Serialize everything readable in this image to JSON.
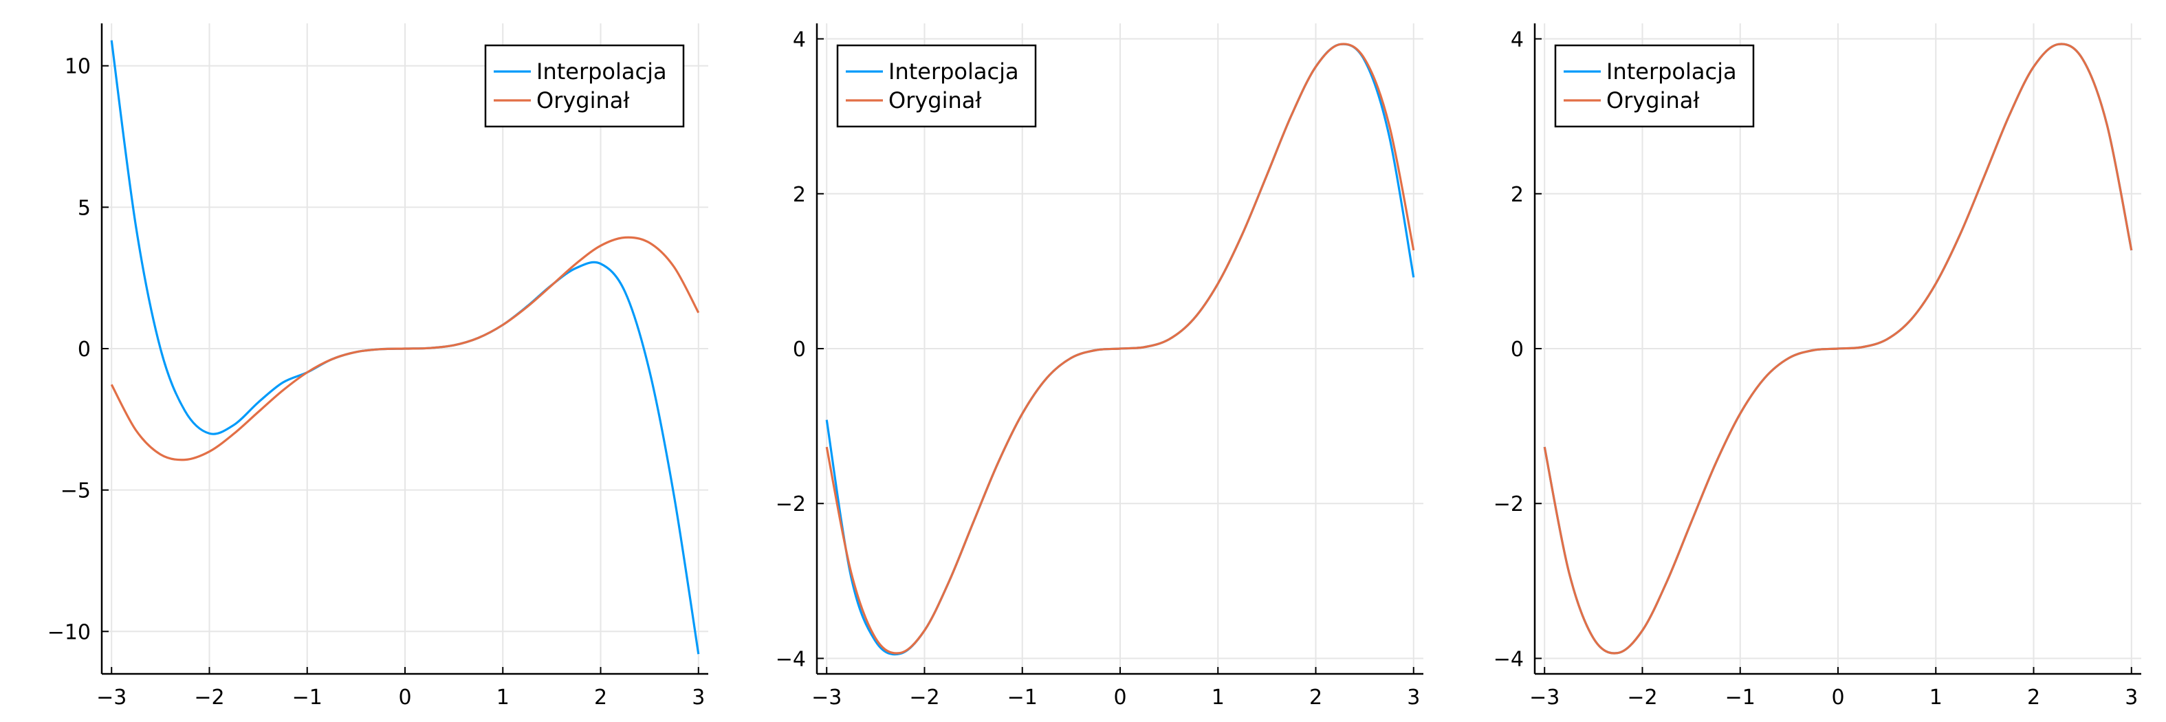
{
  "colors": {
    "interpolation": "#009AFA",
    "original": "#E26F46",
    "axis": "#000000",
    "grid": "#E6E6E6",
    "background": "#FFFFFF"
  },
  "chart_data": [
    {
      "type": "line",
      "xlim": [
        -3.1,
        3.1
      ],
      "ylim": [
        -11.5,
        11.5
      ],
      "x_ticks": [
        -3,
        -2,
        -1,
        0,
        1,
        2,
        3
      ],
      "x_tick_labels": [
        "−3",
        "−2",
        "−1",
        "0",
        "1",
        "2",
        "3"
      ],
      "y_ticks": [
        -10,
        -5,
        0,
        5,
        10
      ],
      "y_tick_labels": [
        "−10",
        "−5",
        "0",
        "5",
        "10"
      ],
      "grid": true,
      "legend_position": "top-right",
      "series": [
        {
          "name": "Interpolacja",
          "x": [
            -3,
            -2.75,
            -2.5,
            -2.25,
            -2,
            -1.75,
            -1.5,
            -1.25,
            -1,
            -0.75,
            -0.5,
            -0.25,
            0,
            0.25,
            0.5,
            0.75,
            1,
            1.25,
            1.5,
            1.75,
            2,
            2.25,
            2.5,
            2.75,
            3
          ],
          "y": [
            10.9,
            4.3,
            0.0,
            -2.2,
            -3.0,
            -2.7,
            -1.9,
            -1.2,
            -0.84,
            -0.38,
            -0.12,
            -0.02,
            0,
            0.02,
            0.12,
            0.38,
            0.84,
            1.5,
            2.25,
            2.85,
            3.0,
            2.0,
            -0.8,
            -5.2,
            -10.8
          ]
        },
        {
          "name": "Oryginał",
          "x": [
            -3,
            -2.75,
            -2.5,
            -2.25,
            -2,
            -1.75,
            -1.5,
            -1.25,
            -1,
            -0.75,
            -0.5,
            -0.25,
            0,
            0.25,
            0.5,
            0.75,
            1,
            1.25,
            1.5,
            1.75,
            2,
            2.25,
            2.5,
            2.75,
            3
          ],
          "y": [
            -1.27,
            -2.89,
            -3.74,
            -3.93,
            -3.64,
            -3.01,
            -2.24,
            -1.48,
            -0.84,
            -0.38,
            -0.12,
            -0.02,
            0,
            0.02,
            0.12,
            0.38,
            0.84,
            1.48,
            2.24,
            3.01,
            3.64,
            3.93,
            3.74,
            2.89,
            1.27
          ]
        }
      ]
    },
    {
      "type": "line",
      "xlim": [
        -3.1,
        3.1
      ],
      "ylim": [
        -4.2,
        4.2
      ],
      "x_ticks": [
        -3,
        -2,
        -1,
        0,
        1,
        2,
        3
      ],
      "x_tick_labels": [
        "−3",
        "−2",
        "−1",
        "0",
        "1",
        "2",
        "3"
      ],
      "y_ticks": [
        -4,
        -2,
        0,
        2,
        4
      ],
      "y_tick_labels": [
        "−4",
        "−2",
        "0",
        "2",
        "4"
      ],
      "grid": true,
      "legend_position": "top-left",
      "series": [
        {
          "name": "Interpolacja",
          "x": [
            -3,
            -2.75,
            -2.5,
            -2.25,
            -2,
            -1.75,
            -1.5,
            -1.25,
            -1,
            -0.75,
            -0.5,
            -0.25,
            0,
            0.25,
            0.5,
            0.75,
            1,
            1.25,
            1.5,
            1.75,
            2,
            2.25,
            2.5,
            2.75,
            3
          ],
          "y": [
            -0.92,
            -2.95,
            -3.78,
            -3.94,
            -3.64,
            -3.01,
            -2.24,
            -1.48,
            -0.84,
            -0.38,
            -0.12,
            -0.02,
            0,
            0.02,
            0.12,
            0.38,
            0.84,
            1.48,
            2.24,
            3.01,
            3.64,
            3.93,
            3.72,
            2.75,
            0.92
          ]
        },
        {
          "name": "Oryginał",
          "x": [
            -3,
            -2.75,
            -2.5,
            -2.25,
            -2,
            -1.75,
            -1.5,
            -1.25,
            -1,
            -0.75,
            -0.5,
            -0.25,
            0,
            0.25,
            0.5,
            0.75,
            1,
            1.25,
            1.5,
            1.75,
            2,
            2.25,
            2.5,
            2.75,
            3
          ],
          "y": [
            -1.27,
            -2.89,
            -3.74,
            -3.93,
            -3.64,
            -3.01,
            -2.24,
            -1.48,
            -0.84,
            -0.38,
            -0.12,
            -0.02,
            0,
            0.02,
            0.12,
            0.38,
            0.84,
            1.48,
            2.24,
            3.01,
            3.64,
            3.93,
            3.74,
            2.89,
            1.27
          ]
        }
      ]
    },
    {
      "type": "line",
      "xlim": [
        -3.1,
        3.1
      ],
      "ylim": [
        -4.2,
        4.2
      ],
      "x_ticks": [
        -3,
        -2,
        -1,
        0,
        1,
        2,
        3
      ],
      "x_tick_labels": [
        "−3",
        "−2",
        "−1",
        "0",
        "1",
        "2",
        "3"
      ],
      "y_ticks": [
        -4,
        -2,
        0,
        2,
        4
      ],
      "y_tick_labels": [
        "−4",
        "−2",
        "0",
        "2",
        "4"
      ],
      "grid": true,
      "legend_position": "top-left",
      "series": [
        {
          "name": "Interpolacja",
          "x": [
            -3,
            -2.75,
            -2.5,
            -2.25,
            -2,
            -1.75,
            -1.5,
            -1.25,
            -1,
            -0.75,
            -0.5,
            -0.25,
            0,
            0.25,
            0.5,
            0.75,
            1,
            1.25,
            1.5,
            1.75,
            2,
            2.25,
            2.5,
            2.75,
            3
          ],
          "y": [
            -1.27,
            -2.89,
            -3.74,
            -3.93,
            -3.64,
            -3.01,
            -2.24,
            -1.48,
            -0.84,
            -0.38,
            -0.12,
            -0.02,
            0,
            0.02,
            0.12,
            0.38,
            0.84,
            1.48,
            2.24,
            3.01,
            3.64,
            3.93,
            3.74,
            2.89,
            1.27
          ]
        },
        {
          "name": "Oryginał",
          "x": [
            -3,
            -2.75,
            -2.5,
            -2.25,
            -2,
            -1.75,
            -1.5,
            -1.25,
            -1,
            -0.75,
            -0.5,
            -0.25,
            0,
            0.25,
            0.5,
            0.75,
            1,
            1.25,
            1.5,
            1.75,
            2,
            2.25,
            2.5,
            2.75,
            3
          ],
          "y": [
            -1.27,
            -2.89,
            -3.74,
            -3.93,
            -3.64,
            -3.01,
            -2.24,
            -1.48,
            -0.84,
            -0.38,
            -0.12,
            -0.02,
            0,
            0.02,
            0.12,
            0.38,
            0.84,
            1.48,
            2.24,
            3.01,
            3.64,
            3.93,
            3.74,
            2.89,
            1.27
          ]
        }
      ]
    }
  ]
}
